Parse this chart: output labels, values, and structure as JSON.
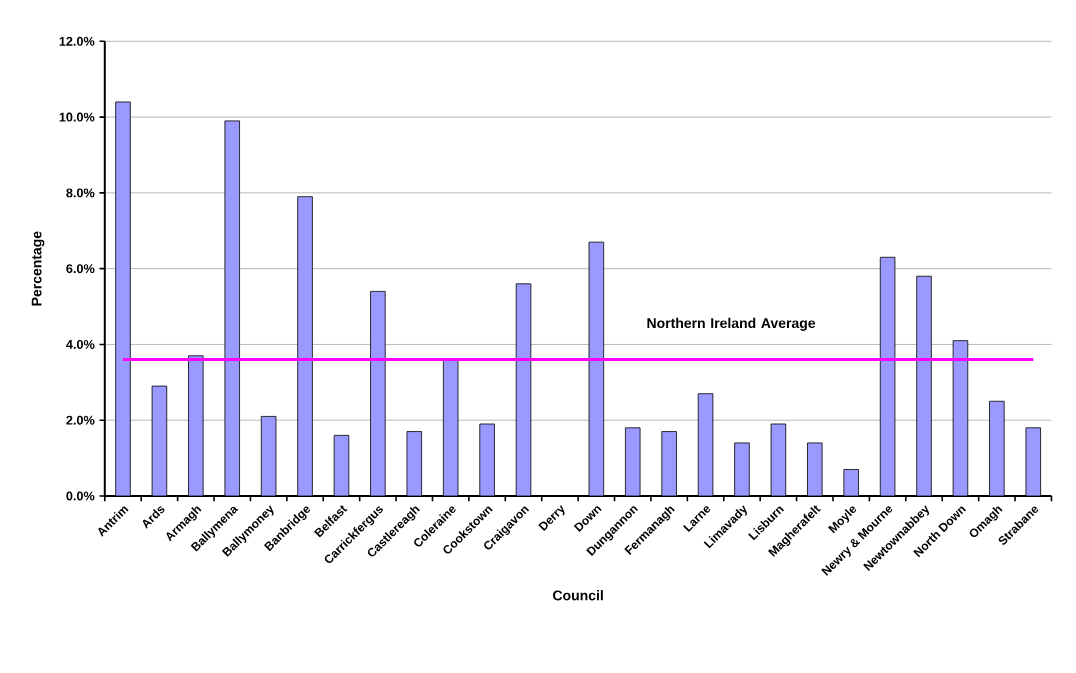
{
  "chart_data": {
    "type": "bar",
    "xlabel": "Council",
    "ylabel": "Percentage",
    "categories": [
      "Antrim",
      "Ards",
      "Armagh",
      "Ballymena",
      "Ballymoney",
      "Banbridge",
      "Belfast",
      "Carrickfergus",
      "Castlereagh",
      "Coleraine",
      "Cookstown",
      "Craigavon",
      "Derry",
      "Down",
      "Dungannon",
      "Fermanagh",
      "Larne",
      "Limavady",
      "Lisburn",
      "Magherafelt",
      "Moyle",
      "Newry & Mourne",
      "Newtownabbey",
      "North Down",
      "Omagh",
      "Strabane"
    ],
    "values": [
      10.4,
      2.9,
      3.7,
      9.9,
      2.1,
      7.9,
      1.6,
      5.4,
      1.7,
      3.6,
      1.9,
      5.6,
      null,
      6.7,
      1.8,
      1.7,
      2.7,
      1.4,
      1.9,
      1.4,
      0.7,
      6.3,
      5.8,
      4.1,
      2.5,
      1.8
    ],
    "color": "#9999ff",
    "ylim": [
      0,
      12
    ],
    "yticks": [
      {
        "value": 0,
        "label": "0.0%"
      },
      {
        "value": 2,
        "label": "2.0%"
      },
      {
        "value": 4,
        "label": "4.0%"
      },
      {
        "value": 6,
        "label": "6.0%"
      },
      {
        "value": 8,
        "label": "8.0%"
      },
      {
        "value": 10,
        "label": "10.0%"
      },
      {
        "value": 12,
        "label": "12.0%"
      }
    ],
    "grid": "y",
    "ref_lines": [
      {
        "axis": "y",
        "value": 3.6,
        "label": "Northern Ireland Average",
        "color": "#ff00ff"
      }
    ]
  }
}
